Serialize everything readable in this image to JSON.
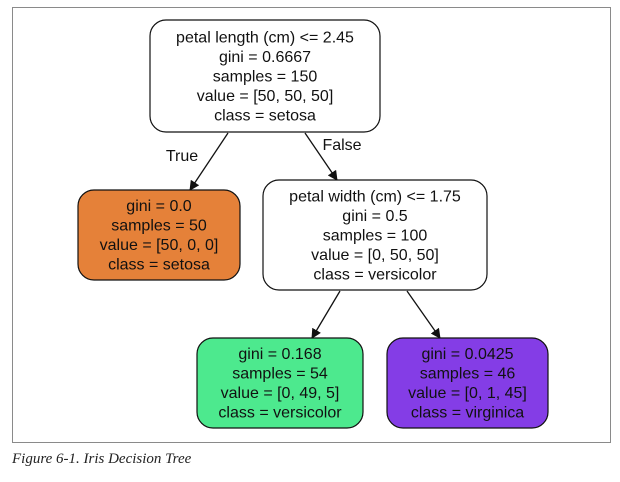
{
  "diagram": {
    "nodes": [
      {
        "id": "root",
        "lines": [
          "petal length (cm) <= 2.45",
          "gini = 0.6667",
          "samples = 150",
          "value = [50, 50, 50]",
          "class = setosa"
        ],
        "fill": "#ffffff"
      },
      {
        "id": "setosa-leaf",
        "lines": [
          "gini = 0.0",
          "samples = 50",
          "value = [50, 0, 0]",
          "class = setosa"
        ],
        "fill": "#e58139"
      },
      {
        "id": "petal-width-split",
        "lines": [
          "petal width (cm) <= 1.75",
          "gini = 0.5",
          "samples = 100",
          "value = [0, 50, 50]",
          "class = versicolor"
        ],
        "fill": "#ffffff"
      },
      {
        "id": "versicolor-leaf",
        "lines": [
          "gini = 0.168",
          "samples = 54",
          "value = [0, 49, 5]",
          "class = versicolor"
        ],
        "fill": "#4de98e"
      },
      {
        "id": "virginica-leaf",
        "lines": [
          "gini = 0.0425",
          "samples = 46",
          "value = [0, 1, 45]",
          "class = virginica"
        ],
        "fill": "#843de6"
      }
    ],
    "edges": [
      {
        "from": "root",
        "to": "setosa-leaf",
        "label": "True"
      },
      {
        "from": "root",
        "to": "petal-width-split",
        "label": "False"
      },
      {
        "from": "petal-width-split",
        "to": "versicolor-leaf",
        "label": ""
      },
      {
        "from": "petal-width-split",
        "to": "virginica-leaf",
        "label": ""
      }
    ]
  },
  "caption": "Figure 6-1. Iris Decision Tree"
}
